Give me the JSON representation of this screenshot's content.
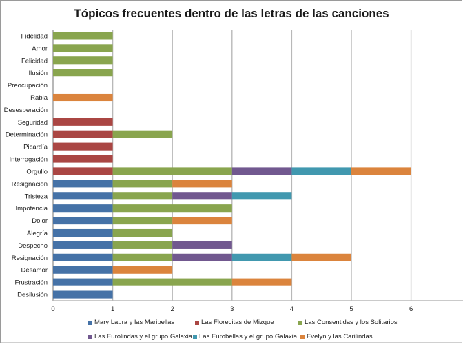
{
  "chart_data": {
    "type": "bar",
    "orientation": "horizontal",
    "stacked": true,
    "title": "Tópicos frecuentes dentro de las letras de las canciones",
    "xlabel": "",
    "ylabel": "",
    "xlim": [
      0,
      7
    ],
    "x_ticks": [
      "0",
      "1",
      "2",
      "3",
      "4",
      "5",
      "6"
    ],
    "grid": "vertical",
    "legend_position": "bottom",
    "categories": [
      "Fidelidad",
      "Amor",
      "Felicidad",
      "Ilusión",
      "Preocupación",
      "Rabia",
      "Desesperación",
      "Seguridad",
      "Determinación",
      "Picardía",
      "Interrogación",
      "Orgullo",
      "Resignación",
      "Tristeza",
      "Impotencia",
      "Dolor",
      "Alegría",
      "Despecho",
      "Resignación",
      "Desamor",
      "Frustración",
      "Desilusión"
    ],
    "series": [
      {
        "name": "Mary Laura y las Maribellas",
        "color": "#4572a7",
        "values": [
          0,
          0,
          0,
          0,
          0,
          0,
          0,
          0,
          0,
          0,
          0,
          0,
          1,
          1,
          1,
          1,
          1,
          1,
          1,
          1,
          1,
          1
        ]
      },
      {
        "name": "Las Florecitas de Mizque",
        "color": "#aa4643",
        "values": [
          0,
          0,
          0,
          0,
          0,
          0,
          0,
          1,
          1,
          1,
          1,
          1,
          0,
          0,
          0,
          0,
          0,
          0,
          0,
          0,
          0,
          0
        ]
      },
      {
        "name": "Las Consentidas y los Solitarios",
        "color": "#89a54e",
        "values": [
          1,
          1,
          1,
          1,
          0,
          0,
          0,
          0,
          1,
          0,
          0,
          2,
          1,
          1,
          2,
          1,
          1,
          1,
          1,
          0,
          2,
          0
        ]
      },
      {
        "name": "Las Eurolindas y el grupo Galaxia",
        "color": "#71588f",
        "values": [
          0,
          0,
          0,
          0,
          0,
          0,
          0,
          0,
          0,
          0,
          0,
          1,
          0,
          1,
          0,
          0,
          0,
          1,
          1,
          0,
          0,
          0
        ]
      },
      {
        "name": "Las Eurobellas y el grupo Galaxia",
        "color": "#4198af",
        "values": [
          0,
          0,
          0,
          0,
          0,
          0,
          0,
          0,
          0,
          0,
          0,
          1,
          0,
          1,
          0,
          0,
          0,
          0,
          1,
          0,
          0,
          0
        ]
      },
      {
        "name": "Evelyn y las Carilindas",
        "color": "#db843d",
        "values": [
          0,
          0,
          0,
          0,
          0,
          1,
          0,
          0,
          0,
          0,
          0,
          1,
          1,
          0,
          0,
          1,
          0,
          0,
          1,
          1,
          1,
          0
        ]
      }
    ]
  }
}
